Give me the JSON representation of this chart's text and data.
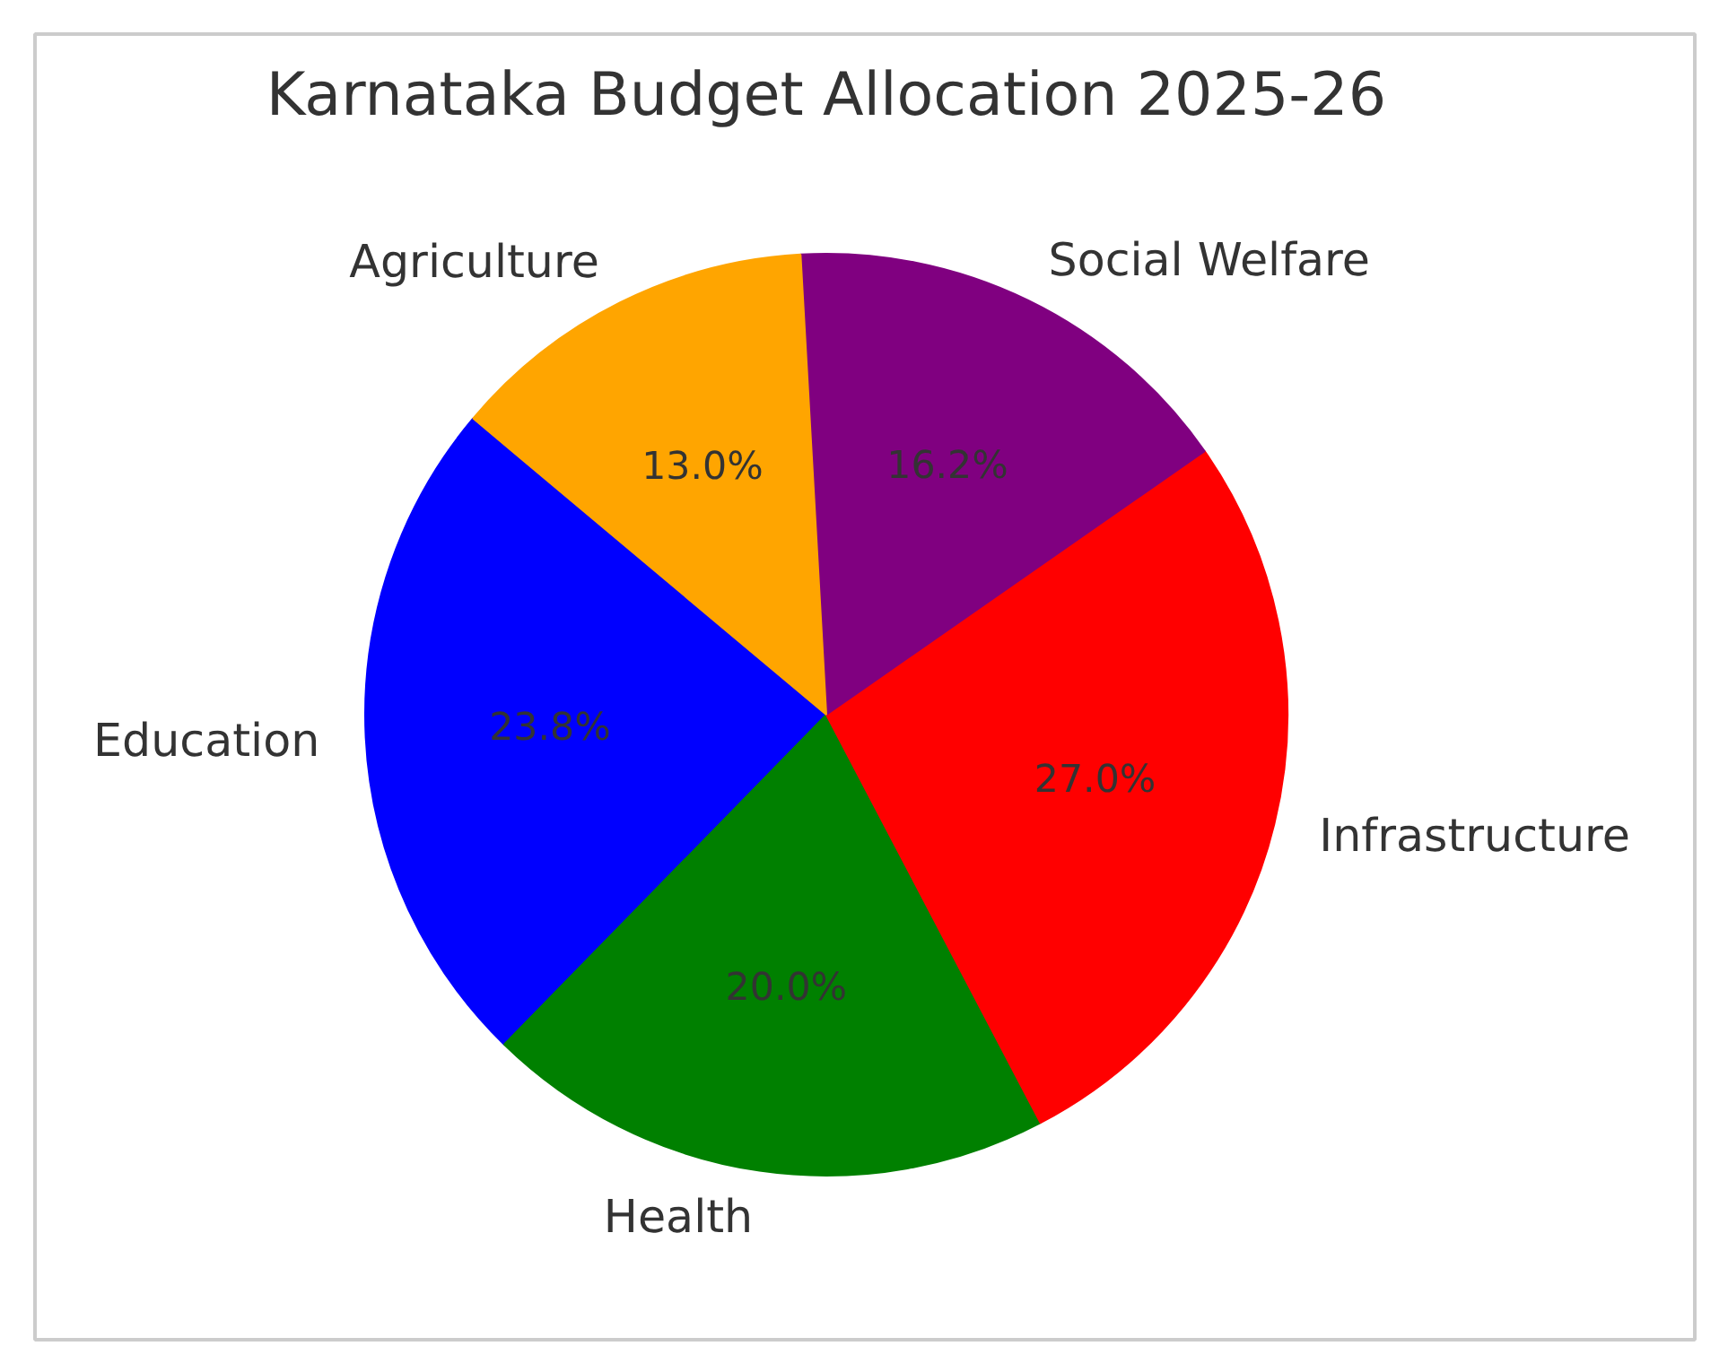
{
  "chart_data": {
    "type": "pie",
    "title": "Karnataka Budget Allocation 2025-26",
    "categories": [
      "Education",
      "Health",
      "Infrastructure",
      "Social Welfare",
      "Agriculture"
    ],
    "values": [
      23.8,
      20.0,
      27.0,
      16.2,
      13.0
    ],
    "value_labels": [
      "23.8%",
      "20.0%",
      "27.0%",
      "16.2%",
      "13.0%"
    ],
    "colors": [
      "#0000ff",
      "#008000",
      "#ff0000",
      "#800080",
      "#ffa500"
    ],
    "legend": false
  }
}
